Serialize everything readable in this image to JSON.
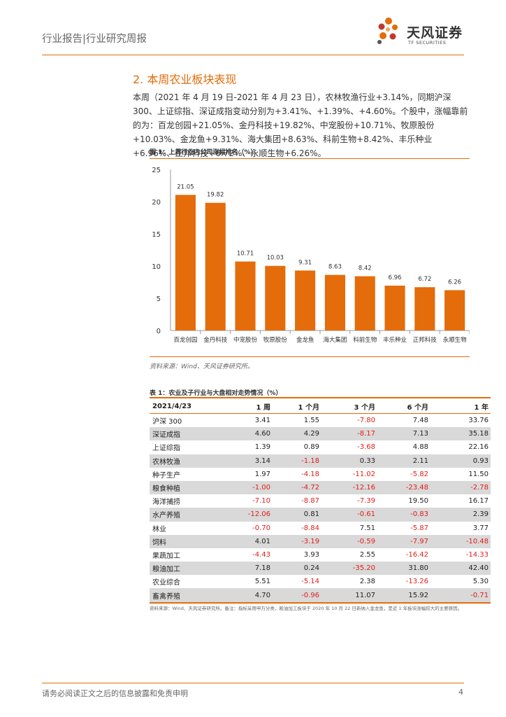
{
  "header": {
    "report_type": "行业报告|行业研究周报",
    "logo_cn": "天风证券",
    "logo_en": "TF SECURITIES"
  },
  "section": {
    "title": "2. 本周农业板块表现",
    "paragraph": "本周（2021 年 4 月 19 日-2021 年 4 月 23 日），农林牧渔行业+3.14%，同期沪深 300、上证综指、深证成指变动分别为+3.41%、+1.39%、+4.60%。个股中，涨幅靠前的为：百龙创园+21.05%、金丹科技+19.82%、中宠股份+10.71%、牧原股份+10.03%、金龙鱼+9.31%、海大集团+8.63%、科前生物+8.42%、丰乐种业+6.96%、正邦科技+6.72%、永顺生物+6.26%。"
  },
  "figure": {
    "title": "图 1：上周行业内公司涨幅排名（%）",
    "source": "资料来源：Wind、天风证券研究所。"
  },
  "chart_data": {
    "type": "bar",
    "title": "上周行业内公司涨幅排名（%）",
    "categories": [
      "百龙创园",
      "金丹科技",
      "中宠股份",
      "牧原股份",
      "金龙鱼",
      "海大集团",
      "科前生物",
      "丰乐种业",
      "正邦科技",
      "永顺生物"
    ],
    "values": [
      21.05,
      19.82,
      10.71,
      10.03,
      9.31,
      8.63,
      8.42,
      6.96,
      6.72,
      6.26
    ],
    "value_labels": [
      "21.05",
      "19.82",
      "10.71",
      "10.03",
      "9.31",
      "8.63",
      "8.42",
      "6.96",
      "6.72",
      "6.26"
    ],
    "yticks": [
      "0",
      "5",
      "10",
      "15",
      "20",
      "25"
    ],
    "ylim": [
      0,
      25
    ],
    "bar_color": "#e46c0a",
    "grid": false
  },
  "table": {
    "title": "表 1：农业及子行业与大盘相对走势情况（%）",
    "headers": [
      "2021/4/23",
      "1 周",
      "1 个月",
      "3 个月",
      "6 个月",
      "1 年"
    ],
    "rows": [
      [
        "沪深 300",
        "3.41",
        "1.55",
        "-7.80",
        "7.48",
        "33.76"
      ],
      [
        "深证成指",
        "4.60",
        "4.29",
        "-8.17",
        "7.13",
        "35.18"
      ],
      [
        "上证综指",
        "1.39",
        "0.89",
        "-3.68",
        "4.88",
        "22.16"
      ],
      [
        "农林牧渔",
        "3.14",
        "-1.18",
        "0.33",
        "2.11",
        "0.93"
      ],
      [
        "种子生产",
        "1.97",
        "-4.18",
        "-11.02",
        "-5.82",
        "11.50"
      ],
      [
        "粮食种植",
        "-1.00",
        "-4.72",
        "-12.16",
        "-23.48",
        "-2.78"
      ],
      [
        "海洋捕捞",
        "-7.10",
        "-8.87",
        "-7.39",
        "19.50",
        "16.17"
      ],
      [
        "水产养殖",
        "-12.06",
        "0.81",
        "-0.61",
        "-0.83",
        "2.39"
      ],
      [
        "林业",
        "-0.70",
        "-8.84",
        "7.51",
        "-5.87",
        "3.77"
      ],
      [
        "饲料",
        "4.01",
        "-3.19",
        "-0.59",
        "-7.97",
        "-10.48"
      ],
      [
        "果蔬加工",
        "-4.43",
        "3.93",
        "2.55",
        "-16.42",
        "-14.33"
      ],
      [
        "粮油加工",
        "7.18",
        "0.24",
        "-35.20",
        "31.80",
        "42.40"
      ],
      [
        "农业综合",
        "5.51",
        "-5.14",
        "2.38",
        "-13.26",
        "5.30"
      ],
      [
        "畜禽养殖",
        "4.70",
        "-0.96",
        "11.07",
        "15.92",
        "-0.71"
      ]
    ],
    "source": "资料来源：Wind、天风证券研究所。备注：指标采用申万分类，粮油加工板块于 2020 年 10 月 22 日新纳入金龙鱼，是近 1 年板块涨幅较大的主要原因。",
    "negative_color": "#e0201a",
    "stripe_color": "#d9d9d9"
  },
  "footer": {
    "disclaimer": "请务必阅读正文之后的信息披露和免责申明",
    "page_number": "4"
  },
  "colors": {
    "accent": "#e46c0a"
  }
}
